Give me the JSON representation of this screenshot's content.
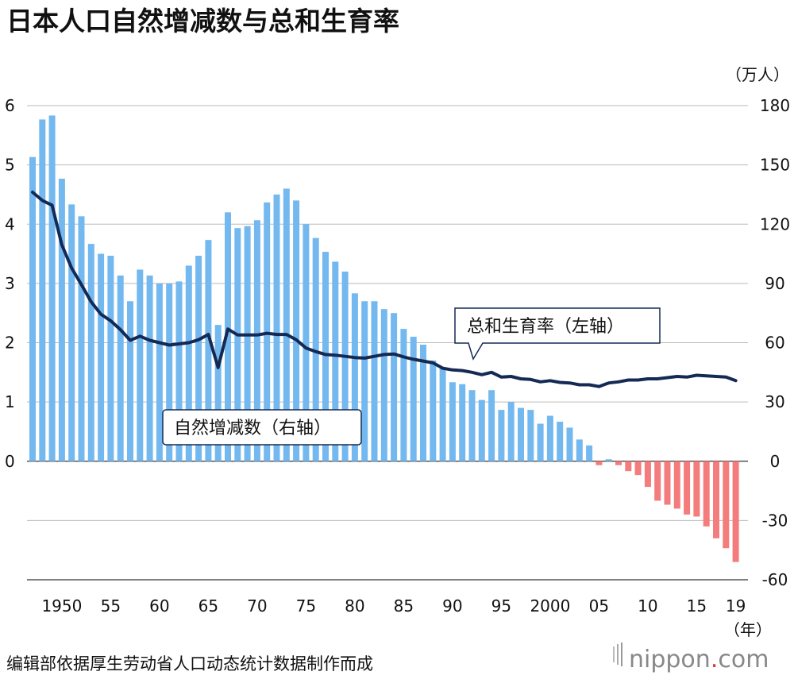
{
  "title": "日本人口自然增减数与总和生育率",
  "source": "编辑部依据厚生劳动省人口动态统计数据制作而成",
  "brand": "nippon",
  "brand_dot": ".",
  "brand_tld": "com",
  "right_unit": "（万人）",
  "year_unit": "（年）",
  "label_births": "总和生育率（左轴）",
  "label_natural": "自然增减数（右轴）",
  "colors": {
    "positive_bar": "#74b8f0",
    "negative_bar": "#f47c7c",
    "line": "#142a55",
    "grid": "#bbbbbb"
  },
  "chart_data": {
    "type": "bar+line",
    "title": "日本人口自然增减数与总和生育率",
    "x": [
      1947,
      1948,
      1949,
      1950,
      1951,
      1952,
      1953,
      1954,
      1955,
      1956,
      1957,
      1958,
      1959,
      1960,
      1961,
      1962,
      1963,
      1964,
      1965,
      1966,
      1967,
      1968,
      1969,
      1970,
      1971,
      1972,
      1973,
      1974,
      1975,
      1976,
      1977,
      1978,
      1979,
      1980,
      1981,
      1982,
      1983,
      1984,
      1985,
      1986,
      1987,
      1988,
      1989,
      1990,
      1991,
      1992,
      1993,
      1994,
      1995,
      1996,
      1997,
      1998,
      1999,
      2000,
      2001,
      2002,
      2003,
      2004,
      2005,
      2006,
      2007,
      2008,
      2009,
      2010,
      2011,
      2012,
      2013,
      2014,
      2015,
      2016,
      2017,
      2018,
      2019
    ],
    "x_tick_labels": [
      {
        "year": 1950,
        "label": "1950"
      },
      {
        "year": 1955,
        "label": "55"
      },
      {
        "year": 1960,
        "label": "60"
      },
      {
        "year": 1965,
        "label": "65"
      },
      {
        "year": 1970,
        "label": "70"
      },
      {
        "year": 1975,
        "label": "75"
      },
      {
        "year": 1980,
        "label": "80"
      },
      {
        "year": 1985,
        "label": "85"
      },
      {
        "year": 1990,
        "label": "90"
      },
      {
        "year": 1995,
        "label": "95"
      },
      {
        "year": 2000,
        "label": "2000"
      },
      {
        "year": 2005,
        "label": "05"
      },
      {
        "year": 2010,
        "label": "10"
      },
      {
        "year": 2015,
        "label": "15"
      },
      {
        "year": 2019,
        "label": "19"
      }
    ],
    "series": [
      {
        "name": "自然增减数（右轴）",
        "type": "bar",
        "axis": "right",
        "unit": "万人",
        "values": [
          154,
          173,
          175,
          143,
          130,
          124,
          110,
          105,
          104,
          94,
          81,
          97,
          94,
          90,
          90,
          91,
          99,
          104,
          112,
          69,
          126,
          118,
          119,
          122,
          131,
          135,
          138,
          132,
          120,
          113,
          106,
          101,
          96,
          85,
          81,
          81,
          77,
          75,
          67,
          63,
          59,
          51,
          47,
          40,
          39,
          36,
          31,
          36,
          26,
          30,
          27,
          26,
          19,
          23,
          20,
          17,
          11,
          8,
          -2,
          1,
          -2,
          -5,
          -7,
          -13,
          -20,
          -22,
          -24,
          -27,
          -28,
          -33,
          -39,
          -44,
          -51
        ]
      },
      {
        "name": "总和生育率（左轴）",
        "type": "line",
        "axis": "left",
        "values": [
          4.54,
          4.4,
          4.32,
          3.65,
          3.26,
          2.98,
          2.69,
          2.48,
          2.37,
          2.22,
          2.04,
          2.11,
          2.04,
          2.0,
          1.96,
          1.98,
          2.0,
          2.05,
          2.14,
          1.58,
          2.23,
          2.13,
          2.13,
          2.13,
          2.16,
          2.14,
          2.14,
          2.05,
          1.91,
          1.85,
          1.8,
          1.79,
          1.77,
          1.75,
          1.74,
          1.77,
          1.8,
          1.81,
          1.76,
          1.72,
          1.69,
          1.66,
          1.57,
          1.54,
          1.53,
          1.5,
          1.46,
          1.5,
          1.42,
          1.43,
          1.39,
          1.38,
          1.34,
          1.36,
          1.33,
          1.32,
          1.29,
          1.29,
          1.26,
          1.32,
          1.34,
          1.37,
          1.37,
          1.39,
          1.39,
          1.41,
          1.43,
          1.42,
          1.45,
          1.44,
          1.43,
          1.42,
          1.36
        ]
      }
    ],
    "left_axis": {
      "ylim": [
        -2,
        6
      ],
      "ticks": [
        0,
        1,
        2,
        3,
        4,
        5,
        6
      ]
    },
    "right_axis": {
      "ylim": [
        -60,
        180
      ],
      "ticks": [
        -60,
        -30,
        0,
        30,
        60,
        90,
        120,
        150,
        180
      ],
      "unit": "（万人）"
    },
    "xlabel": "（年）"
  }
}
